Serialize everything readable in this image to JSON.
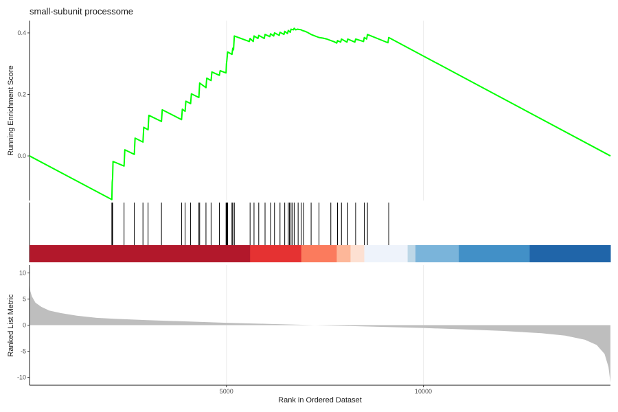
{
  "chart_data": {
    "type": "line",
    "title": "small-subunit processome",
    "xlabel": "Rank in Ordered Dataset",
    "xlim": [
      0,
      14750
    ],
    "x_ticks": [
      5000,
      10000
    ],
    "colors": {
      "es_line": "#00ff00",
      "hit": "#000000",
      "metric_fill": "#bebebe",
      "grid": "#ebebeb"
    },
    "panels": {
      "enrichment": {
        "ylabel": "Running Enrichment Score",
        "ylim": [
          -0.145,
          0.44
        ],
        "y_ticks": [
          0.0,
          0.2,
          0.4
        ],
        "points": [
          [
            0,
            0.0
          ],
          [
            2090,
            -0.142
          ],
          [
            2100,
            -0.085
          ],
          [
            2110,
            -0.072
          ],
          [
            2120,
            -0.018
          ],
          [
            2400,
            -0.033
          ],
          [
            2420,
            0.02
          ],
          [
            2660,
            0.005
          ],
          [
            2680,
            0.058
          ],
          [
            2880,
            0.045
          ],
          [
            2900,
            0.093
          ],
          [
            3010,
            0.085
          ],
          [
            3030,
            0.132
          ],
          [
            3350,
            0.112
          ],
          [
            3370,
            0.15
          ],
          [
            3860,
            0.118
          ],
          [
            3880,
            0.152
          ],
          [
            3950,
            0.145
          ],
          [
            3970,
            0.178
          ],
          [
            4090,
            0.17
          ],
          [
            4110,
            0.202
          ],
          [
            4300,
            0.19
          ],
          [
            4320,
            0.237
          ],
          [
            4480,
            0.222
          ],
          [
            4500,
            0.253
          ],
          [
            4610,
            0.245
          ],
          [
            4630,
            0.273
          ],
          [
            4820,
            0.262
          ],
          [
            4840,
            0.277
          ],
          [
            4990,
            0.27
          ],
          [
            5000,
            0.3
          ],
          [
            5010,
            0.31
          ],
          [
            5030,
            0.338
          ],
          [
            5140,
            0.33
          ],
          [
            5160,
            0.35
          ],
          [
            5180,
            0.345
          ],
          [
            5200,
            0.39
          ],
          [
            5580,
            0.372
          ],
          [
            5600,
            0.382
          ],
          [
            5680,
            0.372
          ],
          [
            5700,
            0.39
          ],
          [
            5800,
            0.382
          ],
          [
            5820,
            0.392
          ],
          [
            5960,
            0.382
          ],
          [
            5980,
            0.395
          ],
          [
            6100,
            0.388
          ],
          [
            6120,
            0.397
          ],
          [
            6200,
            0.39
          ],
          [
            6220,
            0.4
          ],
          [
            6340,
            0.392
          ],
          [
            6360,
            0.402
          ],
          [
            6460,
            0.395
          ],
          [
            6480,
            0.405
          ],
          [
            6550,
            0.398
          ],
          [
            6570,
            0.408
          ],
          [
            6620,
            0.402
          ],
          [
            6640,
            0.412
          ],
          [
            6700,
            0.41
          ],
          [
            6720,
            0.415
          ],
          [
            6760,
            0.41
          ],
          [
            6800,
            0.412
          ],
          [
            6900,
            0.41
          ],
          [
            6920,
            0.408
          ],
          [
            7000,
            0.405
          ],
          [
            7050,
            0.402
          ],
          [
            7150,
            0.395
          ],
          [
            7250,
            0.39
          ],
          [
            7350,
            0.385
          ],
          [
            7450,
            0.383
          ],
          [
            7550,
            0.38
          ],
          [
            7650,
            0.375
          ],
          [
            7720,
            0.372
          ],
          [
            7800,
            0.367
          ],
          [
            7820,
            0.375
          ],
          [
            7900,
            0.37
          ],
          [
            7920,
            0.38
          ],
          [
            8060,
            0.37
          ],
          [
            8080,
            0.38
          ],
          [
            8260,
            0.37
          ],
          [
            8280,
            0.38
          ],
          [
            8480,
            0.372
          ],
          [
            8500,
            0.385
          ],
          [
            8560,
            0.38
          ],
          [
            8580,
            0.395
          ],
          [
            9100,
            0.368
          ],
          [
            9120,
            0.385
          ],
          [
            14750,
            0.0
          ]
        ]
      },
      "hits": {
        "positions": [
          2090,
          2100,
          2110,
          2400,
          2660,
          2880,
          3010,
          3350,
          3860,
          3950,
          4090,
          4300,
          4320,
          4480,
          4610,
          4820,
          4990,
          5000,
          5010,
          5030,
          5140,
          5160,
          5200,
          5600,
          5700,
          5820,
          5980,
          6120,
          6220,
          6360,
          6480,
          6570,
          6600,
          6640,
          6680,
          6720,
          6820,
          6900,
          6960,
          7150,
          7350,
          7650,
          7820,
          7920,
          8080,
          8280,
          8500,
          8580,
          9120
        ],
        "color_bar": [
          {
            "from": 0,
            "to": 5600,
            "color": "#b2182b"
          },
          {
            "from": 5600,
            "to": 6900,
            "color": "#e53232"
          },
          {
            "from": 6900,
            "to": 7800,
            "color": "#fb7b5d"
          },
          {
            "from": 7800,
            "to": 8150,
            "color": "#fdb799"
          },
          {
            "from": 8150,
            "to": 8500,
            "color": "#fde0d2"
          },
          {
            "from": 8500,
            "to": 9600,
            "color": "#eef3fb"
          },
          {
            "from": 9600,
            "to": 9800,
            "color": "#bdd7e7"
          },
          {
            "from": 9800,
            "to": 10900,
            "color": "#7ab4da"
          },
          {
            "from": 10900,
            "to": 12700,
            "color": "#4290c7"
          },
          {
            "from": 12700,
            "to": 14750,
            "color": "#2065a9"
          }
        ]
      },
      "metric": {
        "ylabel": "Ranked List Metric",
        "ylim": [
          -11.5,
          11.5
        ],
        "y_ticks": [
          10,
          5,
          0,
          -5,
          -10
        ],
        "curve": [
          [
            0,
            11.0
          ],
          [
            5,
            8.0
          ],
          [
            20,
            6.5
          ],
          [
            60,
            5.5
          ],
          [
            150,
            4.3
          ],
          [
            300,
            3.5
          ],
          [
            500,
            2.8
          ],
          [
            800,
            2.3
          ],
          [
            1200,
            1.8
          ],
          [
            1700,
            1.4
          ],
          [
            2200,
            1.2
          ],
          [
            3000,
            0.95
          ],
          [
            4000,
            0.7
          ],
          [
            5000,
            0.45
          ],
          [
            6000,
            0.25
          ],
          [
            7000,
            0.05
          ],
          [
            8000,
            -0.15
          ],
          [
            9000,
            -0.35
          ],
          [
            10000,
            -0.55
          ],
          [
            11000,
            -0.8
          ],
          [
            12000,
            -1.1
          ],
          [
            13000,
            -1.55
          ],
          [
            13600,
            -2.0
          ],
          [
            14100,
            -2.8
          ],
          [
            14400,
            -3.8
          ],
          [
            14600,
            -5.5
          ],
          [
            14700,
            -8.0
          ],
          [
            14750,
            -11.0
          ]
        ]
      }
    }
  }
}
